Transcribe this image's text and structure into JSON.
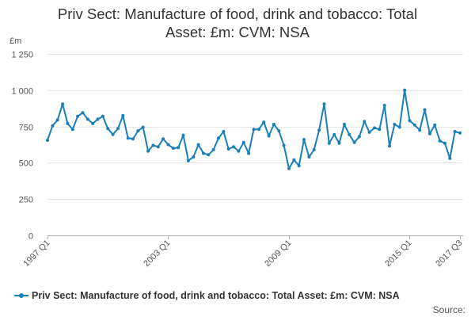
{
  "title_lines": [
    "Priv Sect: Manufacture of food, drink and tobacco: Total",
    "Asset: £m: CVM: NSA"
  ],
  "source_label": "Source:",
  "colors": {
    "series": "#1a7fb8",
    "grid": "#e6e6e6",
    "axis": "#b0b0b0"
  },
  "chart_data": {
    "type": "line",
    "title": "Priv Sect: Manufacture of food, drink and tobacco: Total Asset: £m: CVM: NSA",
    "ylabel": "£m",
    "xlabel": "",
    "ylim": [
      0,
      1250
    ],
    "yticks": [
      0,
      250,
      500,
      750,
      1000,
      1250
    ],
    "ytick_labels": [
      "0",
      "250",
      "500",
      "750",
      "1 000",
      "1 250"
    ],
    "xtick_labels": [
      {
        "label": "1997 Q1",
        "index": 0
      },
      {
        "label": "2003 Q1",
        "index": 24
      },
      {
        "label": "2009 Q1",
        "index": 48
      },
      {
        "label": "2015 Q1",
        "index": 72
      },
      {
        "label": "2017 Q3",
        "index": 82
      }
    ],
    "grid": true,
    "legend_position": "bottom",
    "series": [
      {
        "name": "Priv Sect: Manufacture of food, drink and tobacco: Total Asset: £m: CVM: NSA",
        "x_start": "1997 Q1",
        "frequency": "quarterly",
        "values": [
          655,
          755,
          795,
          905,
          770,
          730,
          820,
          845,
          800,
          770,
          800,
          820,
          735,
          695,
          735,
          825,
          670,
          665,
          720,
          745,
          580,
          620,
          610,
          665,
          625,
          600,
          605,
          690,
          515,
          540,
          625,
          565,
          555,
          590,
          670,
          715,
          595,
          610,
          580,
          640,
          565,
          730,
          730,
          780,
          685,
          765,
          720,
          620,
          460,
          520,
          480,
          660,
          540,
          590,
          725,
          905,
          635,
          695,
          635,
          765,
          695,
          640,
          680,
          785,
          710,
          740,
          730,
          895,
          615,
          765,
          745,
          1000,
          790,
          760,
          725,
          865,
          700,
          760,
          650,
          635,
          530,
          715,
          705
        ]
      }
    ]
  }
}
